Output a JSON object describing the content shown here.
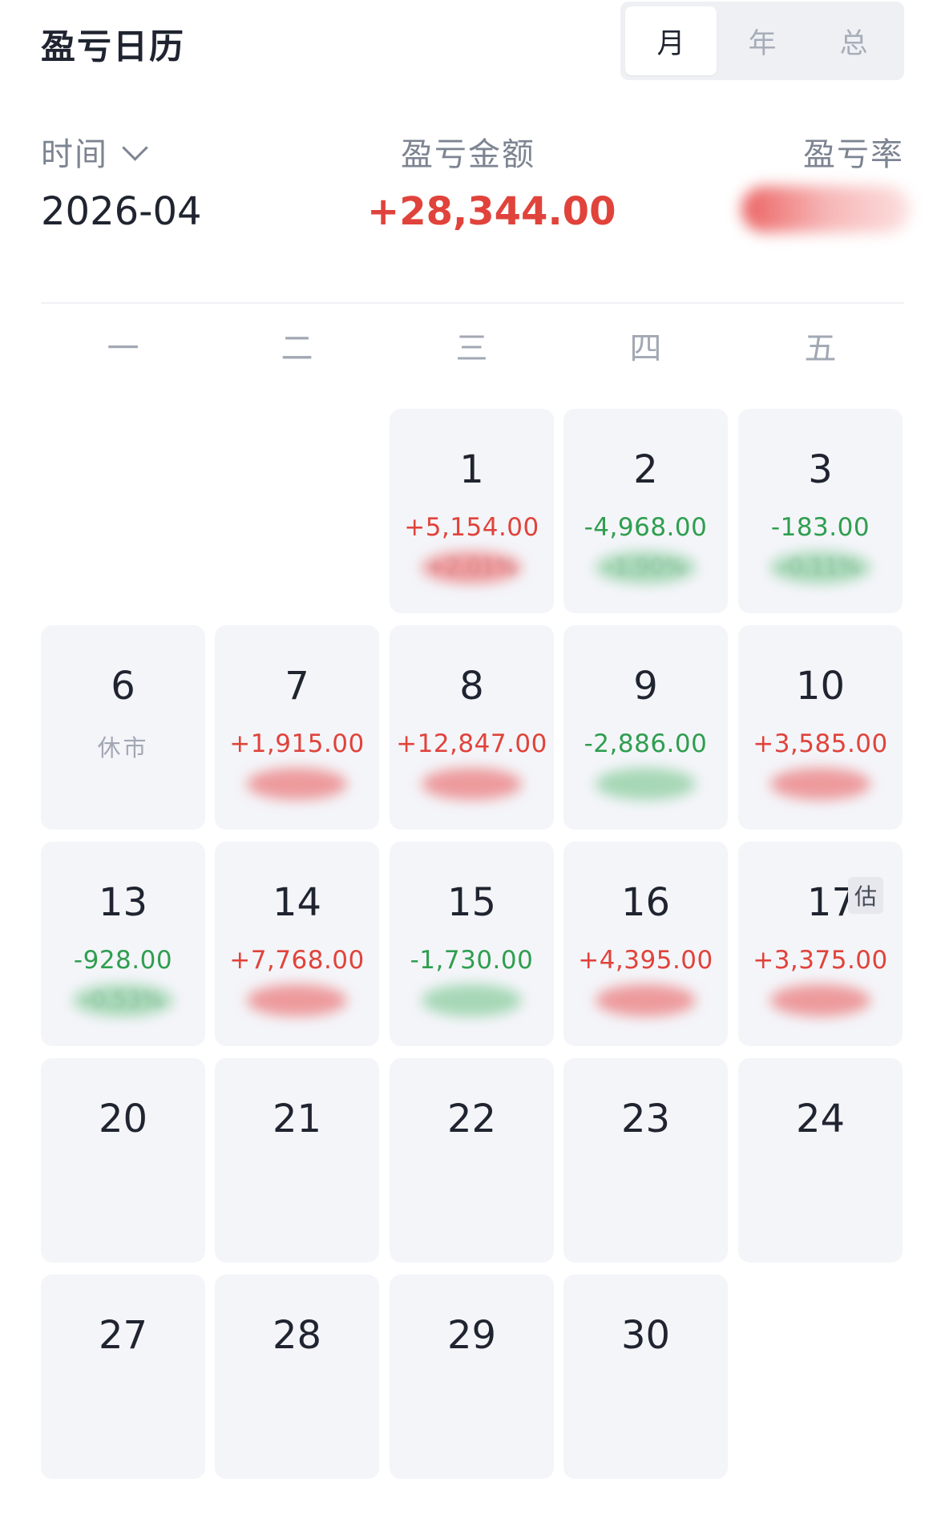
{
  "header": {
    "title": "盈亏日历"
  },
  "period_tabs": [
    {
      "label": "月",
      "active": true
    },
    {
      "label": "年",
      "active": false
    },
    {
      "label": "总",
      "active": false
    }
  ],
  "summary": {
    "time_label": "时间",
    "time_value": "2026-04",
    "amount_label": "盈亏金额",
    "amount_value": "+28,344.00",
    "rate_label": "盈亏率"
  },
  "weekdays": [
    "一",
    "二",
    "三",
    "四",
    "五"
  ],
  "calendar": {
    "month": "2026-04",
    "estimate_tag": "估",
    "closed_label": "休市",
    "days": [
      {
        "day": "1",
        "pnl": "+5,154.00",
        "trend": "up",
        "pct": "+2.01%"
      },
      {
        "day": "2",
        "pnl": "-4,968.00",
        "trend": "down",
        "pct": "-1.90%"
      },
      {
        "day": "3",
        "pnl": "-183.00",
        "trend": "down",
        "pct": "-0.11%"
      },
      {
        "day": "6",
        "pnl": "休市",
        "trend": "closed",
        "pct": ""
      },
      {
        "day": "7",
        "pnl": "+1,915.00",
        "trend": "up",
        "pct": ""
      },
      {
        "day": "8",
        "pnl": "+12,847.00",
        "trend": "up",
        "pct": ""
      },
      {
        "day": "9",
        "pnl": "-2,886.00",
        "trend": "down",
        "pct": ""
      },
      {
        "day": "10",
        "pnl": "+3,585.00",
        "trend": "up",
        "pct": ""
      },
      {
        "day": "13",
        "pnl": "-928.00",
        "trend": "down",
        "pct": "-0.53%"
      },
      {
        "day": "14",
        "pnl": "+7,768.00",
        "trend": "up",
        "pct": ""
      },
      {
        "day": "15",
        "pnl": "-1,730.00",
        "trend": "down",
        "pct": ""
      },
      {
        "day": "16",
        "pnl": "+4,395.00",
        "trend": "up",
        "pct": ""
      },
      {
        "day": "17",
        "pnl": "+3,375.00",
        "trend": "up",
        "pct": "",
        "estimated": true
      },
      {
        "day": "20",
        "pnl": "",
        "trend": "none",
        "pct": ""
      },
      {
        "day": "21",
        "pnl": "",
        "trend": "none",
        "pct": ""
      },
      {
        "day": "22",
        "pnl": "",
        "trend": "none",
        "pct": ""
      },
      {
        "day": "23",
        "pnl": "",
        "trend": "none",
        "pct": ""
      },
      {
        "day": "24",
        "pnl": "",
        "trend": "none",
        "pct": ""
      },
      {
        "day": "27",
        "pnl": "",
        "trend": "none",
        "pct": ""
      },
      {
        "day": "28",
        "pnl": "",
        "trend": "none",
        "pct": ""
      },
      {
        "day": "29",
        "pnl": "",
        "trend": "none",
        "pct": ""
      },
      {
        "day": "30",
        "pnl": "",
        "trend": "none",
        "pct": ""
      }
    ]
  },
  "colors": {
    "profit": "#e0433b",
    "loss": "#2f9e4f",
    "cell_bg": "#f4f5f9",
    "muted": "#a2a8b3"
  }
}
